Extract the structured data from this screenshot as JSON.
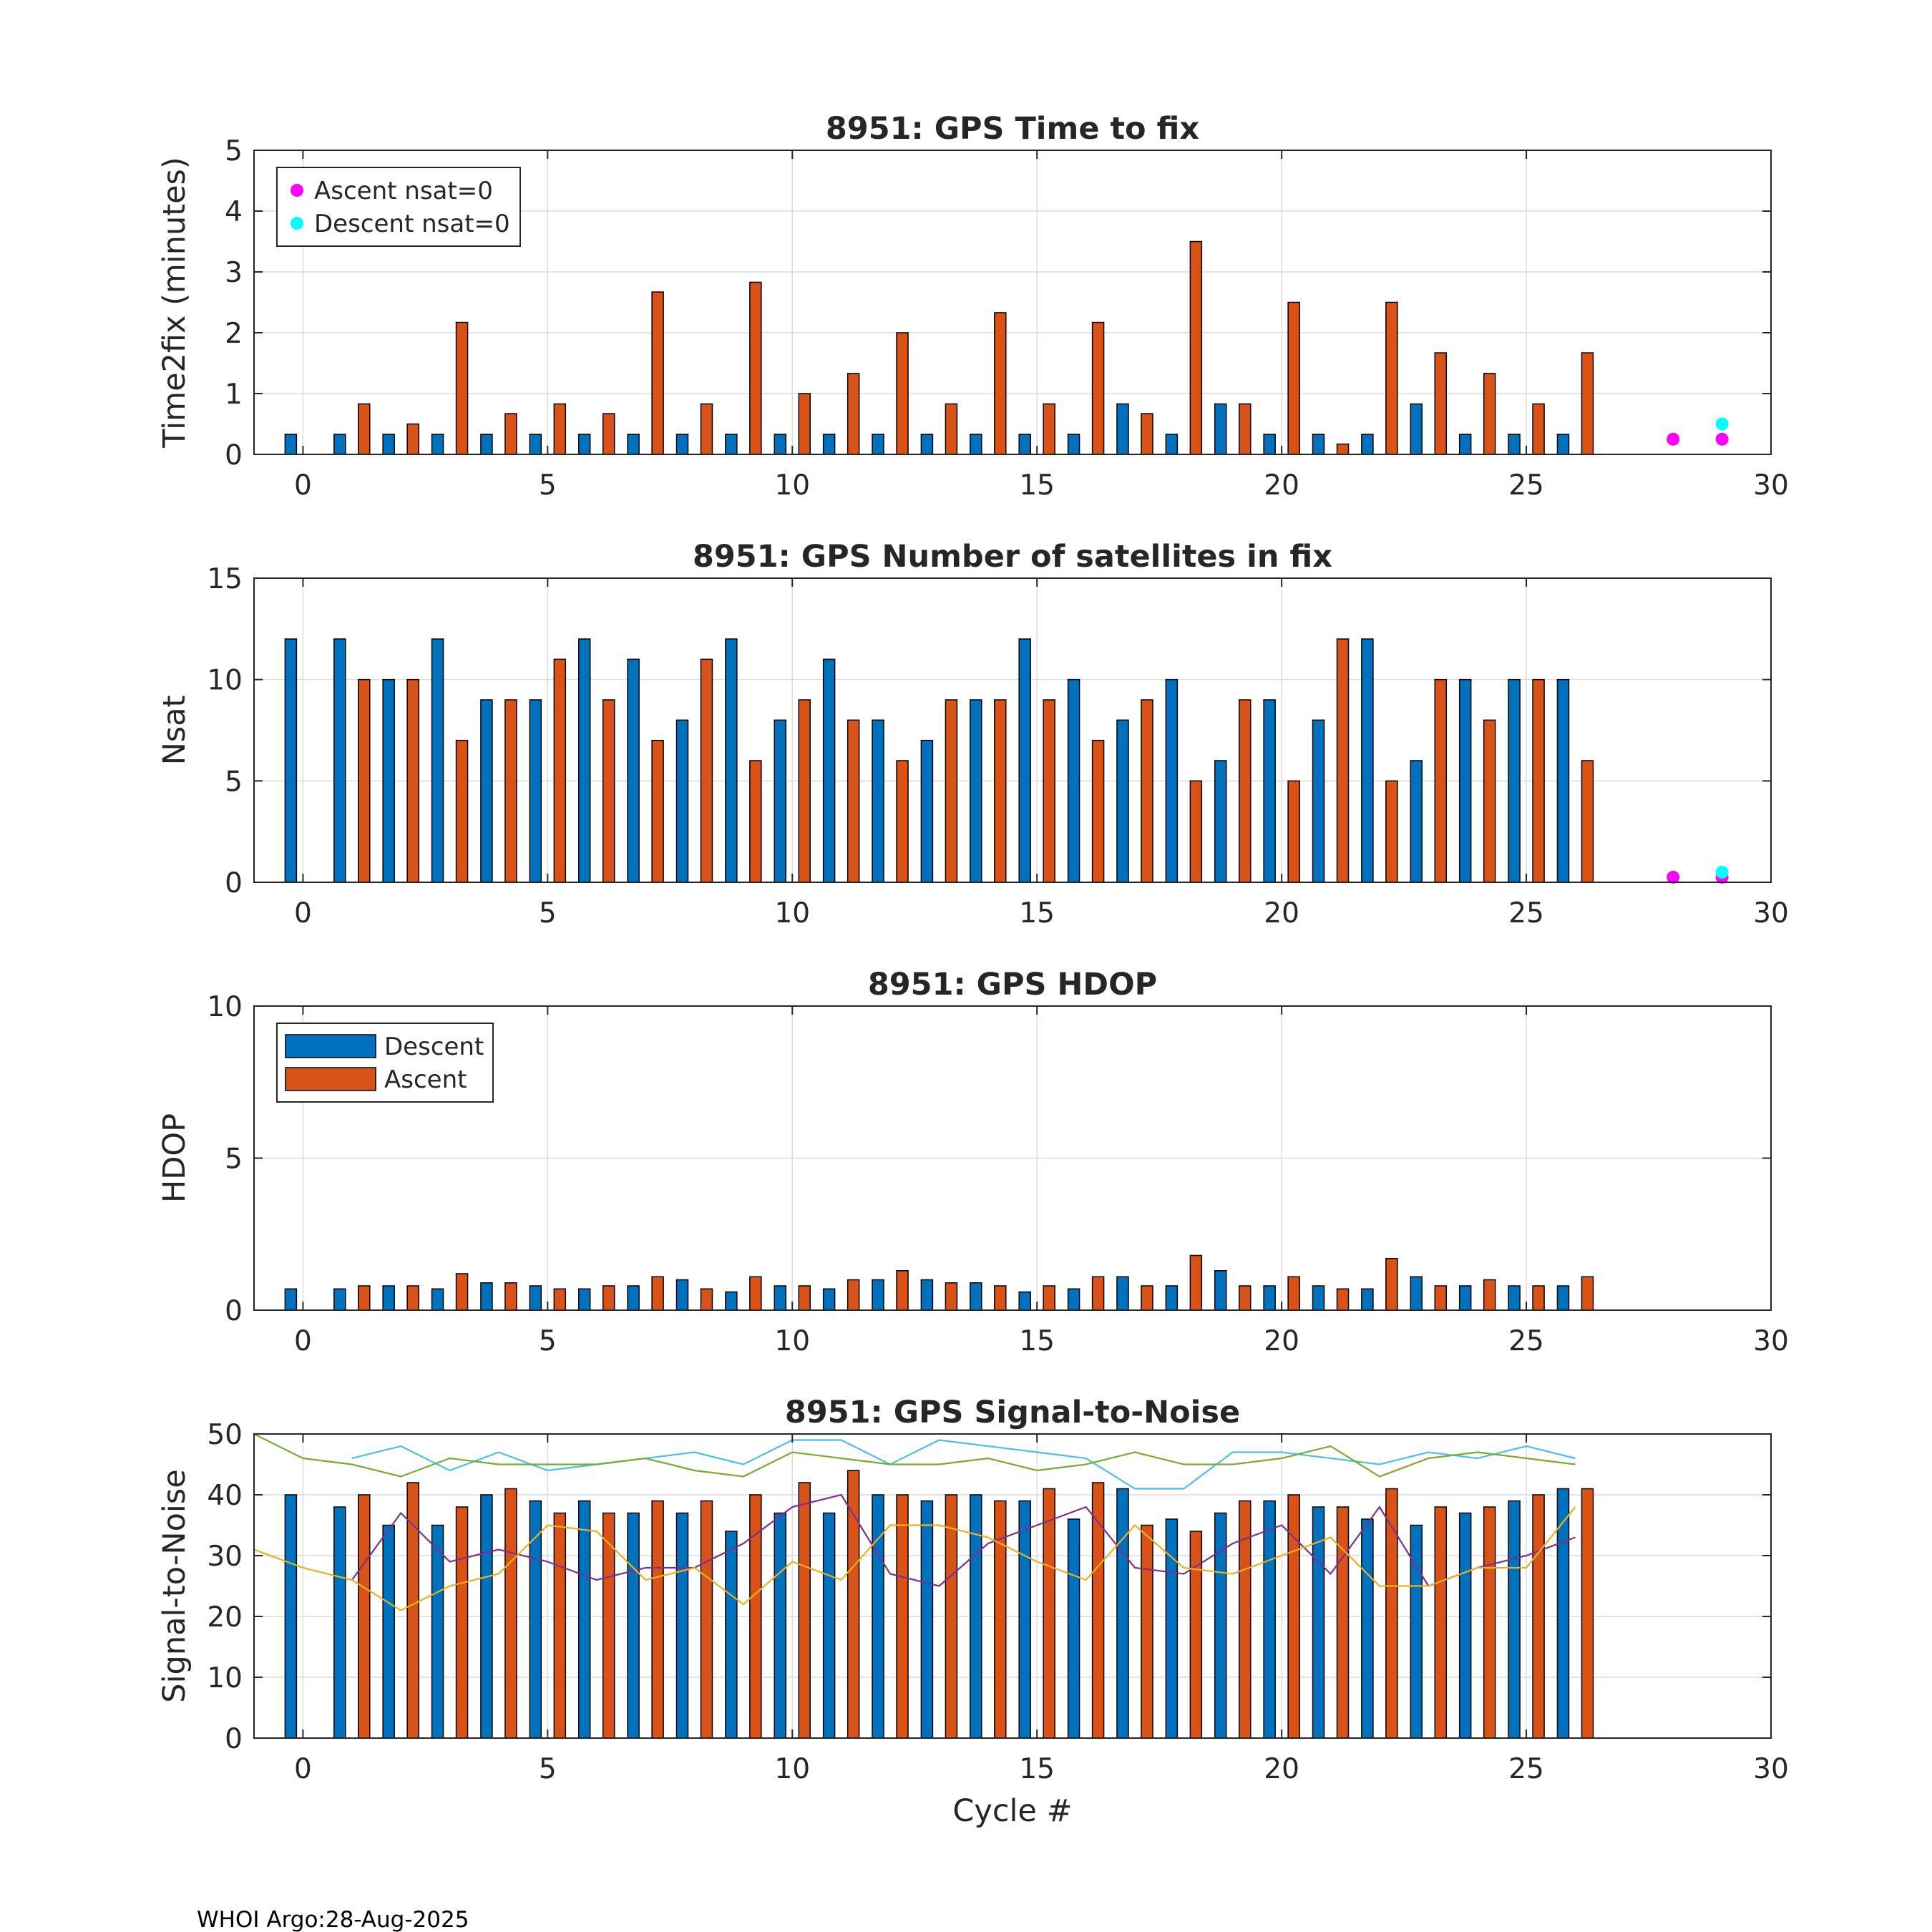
{
  "footer": "WHOI Argo:28-Aug-2025",
  "colors": {
    "descent": "#0072BD",
    "ascent": "#D95319",
    "ascent_nsat0": "#FF00FF",
    "descent_nsat0": "#00FFFF",
    "snr_line_1": "#4DBEEE",
    "snr_line_2": "#77AC30",
    "snr_line_3": "#7E2F8E",
    "snr_line_4": "#EDB120"
  },
  "chart_data": [
    {
      "id": "time2fix",
      "type": "bar",
      "title": "8951: GPS Time to fix",
      "xlabel": "",
      "ylabel": "Time2fix (minutes)",
      "xlim": [
        -1,
        30
      ],
      "ylim": [
        0,
        5
      ],
      "xticks": [
        0,
        5,
        10,
        15,
        20,
        25,
        30
      ],
      "yticks": [
        0,
        1,
        2,
        3,
        4,
        5
      ],
      "grid": true,
      "cycles": [
        0,
        1,
        2,
        3,
        4,
        5,
        6,
        7,
        8,
        9,
        10,
        11,
        12,
        13,
        14,
        15,
        16,
        17,
        18,
        19,
        20,
        21,
        22,
        23,
        24,
        25,
        26
      ],
      "series": [
        {
          "name": "Descent",
          "values": [
            0.33,
            0.33,
            0.33,
            0.33,
            0.33,
            0.33,
            0.33,
            0.33,
            0.33,
            0.33,
            0.33,
            0.33,
            0.33,
            0.33,
            0.33,
            0.33,
            0.33,
            0.83,
            0.33,
            0.83,
            0.33,
            0.33,
            0.33,
            0.83,
            0.33,
            0.33,
            0.33
          ]
        },
        {
          "name": "Ascent",
          "values": [
            null,
            0.83,
            0.5,
            2.17,
            0.67,
            0.83,
            0.67,
            2.67,
            0.83,
            2.83,
            1.0,
            1.33,
            2.0,
            0.83,
            2.33,
            0.83,
            2.17,
            0.67,
            3.5,
            0.83,
            2.5,
            0.17,
            2.5,
            1.67,
            1.33,
            0.83,
            1.67
          ]
        }
      ],
      "points": [
        {
          "name": "Ascent nsat=0",
          "x": [
            28,
            29
          ],
          "y": [
            0.25,
            0.25
          ]
        },
        {
          "name": "Descent nsat=0",
          "x": [
            29
          ],
          "y": [
            0.5
          ]
        }
      ],
      "legend": {
        "position": "top-left",
        "entries": [
          "Ascent nsat=0",
          "Descent nsat=0"
        ]
      }
    },
    {
      "id": "nsat",
      "type": "bar",
      "title": "8951: GPS Number of satellites in fix",
      "xlabel": "",
      "ylabel": "Nsat",
      "xlim": [
        -1,
        30
      ],
      "ylim": [
        0,
        15
      ],
      "xticks": [
        0,
        5,
        10,
        15,
        20,
        25,
        30
      ],
      "yticks": [
        0,
        5,
        10,
        15
      ],
      "grid": true,
      "cycles": [
        0,
        1,
        2,
        3,
        4,
        5,
        6,
        7,
        8,
        9,
        10,
        11,
        12,
        13,
        14,
        15,
        16,
        17,
        18,
        19,
        20,
        21,
        22,
        23,
        24,
        25,
        26,
        28,
        29
      ],
      "series": [
        {
          "name": "Descent",
          "values": [
            12,
            12,
            10,
            12,
            9,
            9,
            12,
            11,
            8,
            12,
            8,
            11,
            8,
            7,
            9,
            12,
            10,
            8,
            10,
            6,
            9,
            8,
            12,
            6,
            10,
            10,
            10,
            0,
            0
          ]
        },
        {
          "name": "Ascent",
          "values": [
            null,
            10,
            10,
            7,
            9,
            11,
            9,
            7,
            11,
            6,
            9,
            8,
            6,
            9,
            9,
            9,
            7,
            9,
            5,
            9,
            5,
            12,
            5,
            10,
            8,
            10,
            6,
            0,
            0
          ]
        }
      ],
      "points": [
        {
          "name": "Ascent nsat=0",
          "x": [
            28,
            29
          ],
          "y": [
            0.25,
            0.25
          ]
        },
        {
          "name": "Descent nsat=0",
          "x": [
            29
          ],
          "y": [
            0.5
          ]
        }
      ]
    },
    {
      "id": "hdop",
      "type": "bar",
      "title": "8951: GPS HDOP",
      "xlabel": "",
      "ylabel": "HDOP",
      "xlim": [
        -1,
        30
      ],
      "ylim": [
        0,
        10
      ],
      "xticks": [
        0,
        5,
        10,
        15,
        20,
        25,
        30
      ],
      "yticks": [
        0,
        5,
        10
      ],
      "grid": true,
      "cycles": [
        0,
        1,
        2,
        3,
        4,
        5,
        6,
        7,
        8,
        9,
        10,
        11,
        12,
        13,
        14,
        15,
        16,
        17,
        18,
        19,
        20,
        21,
        22,
        23,
        24,
        25,
        26,
        28,
        29
      ],
      "series": [
        {
          "name": "Descent",
          "values": [
            0.7,
            0.7,
            0.8,
            0.7,
            0.9,
            0.8,
            0.7,
            0.8,
            1.0,
            0.6,
            0.8,
            0.7,
            1.0,
            1.0,
            0.9,
            0.6,
            0.7,
            1.1,
            0.8,
            1.3,
            0.8,
            0.8,
            0.7,
            1.1,
            0.8,
            0.8,
            0.8,
            0,
            0
          ]
        },
        {
          "name": "Ascent",
          "values": [
            0,
            0.8,
            0.8,
            1.2,
            0.9,
            0.7,
            0.8,
            1.1,
            0.7,
            1.1,
            0.8,
            1.0,
            1.3,
            0.9,
            0.8,
            0.8,
            1.1,
            0.8,
            1.8,
            0.8,
            1.1,
            0.7,
            1.7,
            0.8,
            1.0,
            0.8,
            1.1,
            0,
            0
          ]
        }
      ],
      "legend": {
        "position": "top-left",
        "entries": [
          "Descent",
          "Ascent"
        ]
      }
    },
    {
      "id": "snr",
      "type": "bar",
      "title": "8951: GPS Signal-to-Noise",
      "xlabel": "Cycle #",
      "ylabel": "Signal-to-Noise",
      "xlim": [
        -1,
        30
      ],
      "ylim": [
        0,
        50
      ],
      "xticks": [
        0,
        5,
        10,
        15,
        20,
        25,
        30
      ],
      "yticks": [
        0,
        10,
        20,
        30,
        40,
        50
      ],
      "grid": true,
      "cycles": [
        0,
        1,
        2,
        3,
        4,
        5,
        6,
        7,
        8,
        9,
        10,
        11,
        12,
        13,
        14,
        15,
        16,
        17,
        18,
        19,
        20,
        21,
        22,
        23,
        24,
        25,
        26,
        29
      ],
      "series": [
        {
          "name": "Descent",
          "values": [
            40,
            38,
            35,
            35,
            40,
            39,
            39,
            37,
            37,
            34,
            37,
            37,
            40,
            39,
            40,
            39,
            36,
            41,
            36,
            37,
            39,
            38,
            36,
            35,
            37,
            39,
            41,
            0
          ]
        },
        {
          "name": "Ascent",
          "values": [
            null,
            40,
            42,
            38,
            41,
            37,
            37,
            39,
            39,
            40,
            42,
            44,
            40,
            40,
            39,
            41,
            42,
            35,
            34,
            39,
            40,
            38,
            41,
            38,
            38,
            40,
            41,
            null
          ]
        }
      ],
      "lines": [
        {
          "name": "snr_line_1",
          "x": [
            1,
            2,
            3,
            4,
            5,
            6,
            7,
            8,
            9,
            10,
            11,
            12,
            13,
            14,
            15,
            16,
            17,
            18,
            19,
            20,
            21,
            22,
            23,
            24,
            25,
            26
          ],
          "y": [
            46,
            48,
            44,
            47,
            44,
            45,
            46,
            47,
            45,
            49,
            49,
            45,
            49,
            48,
            47,
            46,
            41,
            41,
            47,
            47,
            46,
            45,
            47,
            46,
            48,
            46
          ]
        },
        {
          "name": "snr_line_2",
          "x": [
            -1,
            0,
            1,
            2,
            3,
            4,
            5,
            6,
            7,
            8,
            9,
            10,
            11,
            12,
            13,
            14,
            15,
            16,
            17,
            18,
            19,
            20,
            21,
            22,
            23,
            24,
            25,
            26
          ],
          "y": [
            50,
            46,
            45,
            43,
            46,
            45,
            45,
            45,
            46,
            44,
            43,
            47,
            46,
            45,
            45,
            46,
            44,
            45,
            47,
            45,
            45,
            46,
            48,
            43,
            46,
            47,
            46,
            45
          ]
        },
        {
          "name": "snr_line_3",
          "x": [
            1,
            2,
            3,
            4,
            5,
            6,
            7,
            8,
            9,
            10,
            11,
            12,
            13,
            14,
            15,
            16,
            17,
            18,
            19,
            20,
            21,
            22,
            23,
            24,
            25,
            26
          ],
          "y": [
            26,
            37,
            29,
            31,
            29,
            26,
            28,
            28,
            32,
            38,
            40,
            27,
            25,
            32,
            35,
            38,
            28,
            27,
            32,
            35,
            27,
            38,
            25,
            28,
            30,
            33
          ]
        },
        {
          "name": "snr_line_4",
          "x": [
            -1,
            0,
            1,
            2,
            3,
            4,
            5,
            6,
            7,
            8,
            9,
            10,
            11,
            12,
            13,
            14,
            15,
            16,
            17,
            18,
            19,
            20,
            21,
            22,
            23,
            24,
            25,
            26
          ],
          "y": [
            31,
            28,
            26,
            21,
            25,
            27,
            35,
            34,
            26,
            28,
            22,
            29,
            26,
            35,
            35,
            33,
            29,
            26,
            35,
            28,
            27,
            30,
            33,
            25,
            25,
            28,
            28,
            38
          ]
        }
      ]
    }
  ]
}
